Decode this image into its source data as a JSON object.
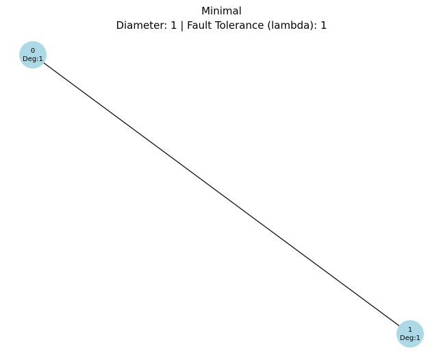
{
  "figure": {
    "title": "Minimal",
    "subtitle": "Diameter: 1 | Fault Tolerance (lambda): 1"
  },
  "graph": {
    "node_color": "#add8e6",
    "edge_color": "#000000",
    "nodes": [
      {
        "id": "0",
        "id_label": "0",
        "degree_label": "Deg:1"
      },
      {
        "id": "1",
        "id_label": "1",
        "degree_label": "Deg:1"
      }
    ],
    "edges": [
      {
        "source": "0",
        "target": "1"
      }
    ]
  }
}
